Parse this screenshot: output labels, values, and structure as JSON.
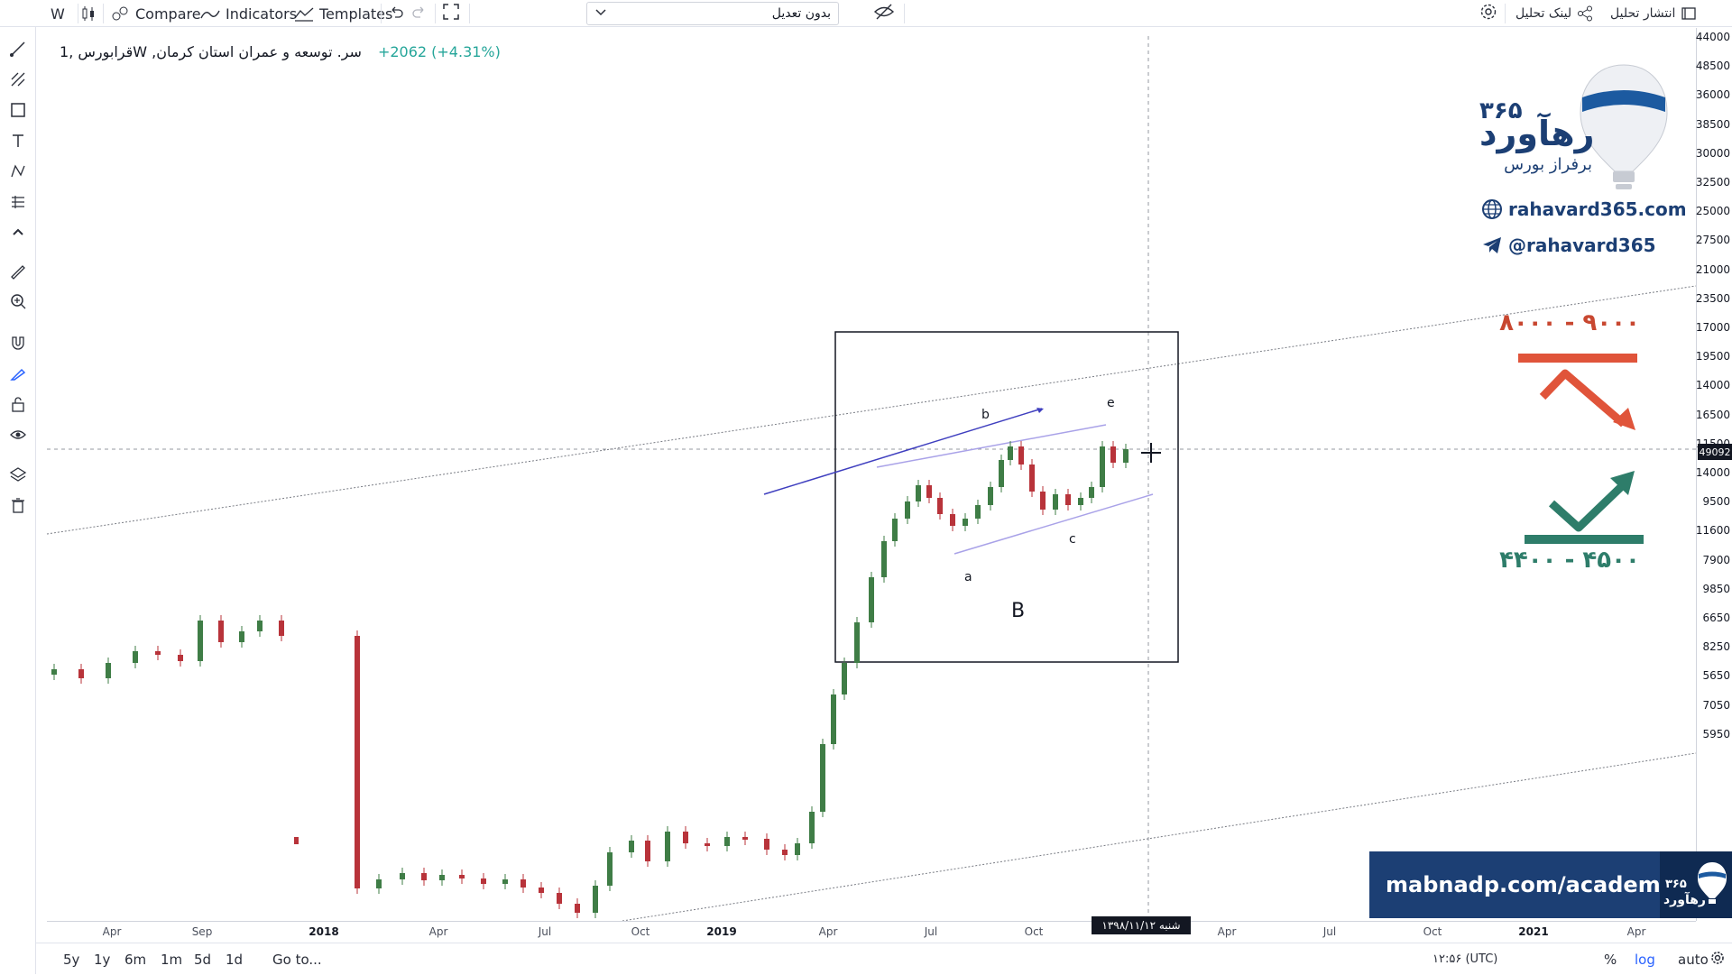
{
  "toolbar": {
    "interval": "W",
    "compare": "Compare",
    "indicators": "Indicators",
    "templates": "Templates",
    "variant_select": "بدون تعدیل",
    "publish": "انتشار تحلیل",
    "share_link": "لینک تحلیل"
  },
  "legend": {
    "symbol": "قرابورس ,1W ,سر. توسعه و عمران استان کرمان",
    "change": "+2062 (+4.31%)"
  },
  "chart_data": {
    "type": "candlestick",
    "y_scale": "log",
    "price_axis": [
      "44000",
      "36000",
      "30000",
      "25000",
      "21000",
      "17000",
      "14000",
      "11500",
      "9500",
      "7900",
      "6650",
      "5650",
      "48500",
      "38500",
      "32500",
      "27500",
      "23500",
      "19500",
      "16500",
      "14000",
      "11600",
      "9850",
      "8250",
      "7050",
      "5950"
    ],
    "last_price": "49092",
    "time_axis": [
      {
        "label": "Apr",
        "bold": false
      },
      {
        "label": "Sep",
        "bold": false
      },
      {
        "label": "2018",
        "bold": true
      },
      {
        "label": "Apr",
        "bold": false
      },
      {
        "label": "Jul",
        "bold": false
      },
      {
        "label": "Oct",
        "bold": false
      },
      {
        "label": "2019",
        "bold": true
      },
      {
        "label": "Apr",
        "bold": false
      },
      {
        "label": "Jul",
        "bold": false
      },
      {
        "label": "Oct",
        "bold": false
      },
      {
        "label": "Apr",
        "bold": false
      },
      {
        "label": "Jul",
        "bold": false
      },
      {
        "label": "Oct",
        "bold": false
      },
      {
        "label": "2021",
        "bold": true
      },
      {
        "label": "Apr",
        "bold": false
      }
    ],
    "crosshair_date": "شنبه ۱۳۹۸/۱۱/۱۲",
    "annotations": {
      "wave_a": "a",
      "wave_b": "b",
      "wave_c": "c",
      "wave_e": "e",
      "box_label": "B"
    }
  },
  "overlay": {
    "brand_name": "رهآورد",
    "brand_number": "۳۶۵",
    "brand_sub": "برفراز بورس",
    "website": "rahavard365.com",
    "telegram": "@rahavard365",
    "target_high": "۸۰۰۰ - ۹۰۰۰",
    "target_low": "۴۴۰۰ - ۴۵۰۰",
    "academy": "mabnadp.com/academy",
    "colors": {
      "brand": "#1c3f74",
      "high": "#c84730",
      "low": "#2e7d6a"
    }
  },
  "bottom_bar": {
    "ranges": [
      "5y",
      "1y",
      "6m",
      "1m",
      "5d",
      "1d"
    ],
    "goto": "Go to...",
    "time": "۱۲:۵۶ (UTC)",
    "percent": "%",
    "log": "log",
    "auto": "auto"
  }
}
